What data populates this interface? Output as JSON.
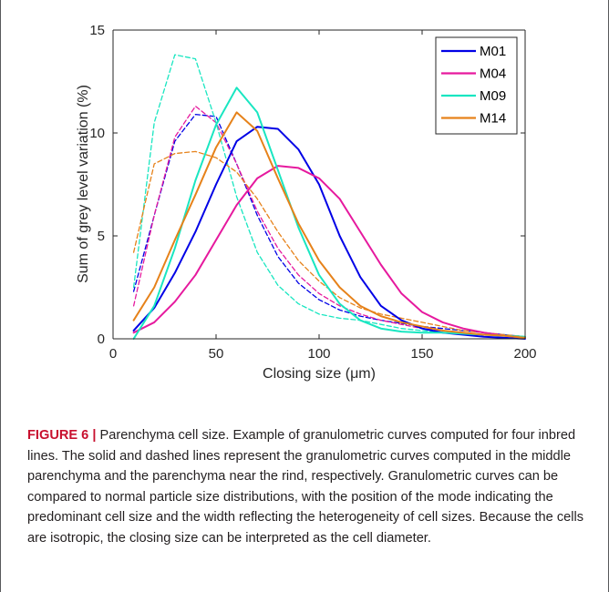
{
  "chart_data": {
    "type": "line",
    "xlabel": "Closing size (μm)",
    "ylabel": "Sum of grey level variation (%)",
    "xlim": [
      0,
      200
    ],
    "ylim": [
      0,
      15
    ],
    "xticks": [
      0,
      50,
      100,
      150,
      200
    ],
    "yticks": [
      0,
      5,
      10,
      15
    ],
    "grid": false,
    "legend_position": "top-right",
    "x": [
      10,
      20,
      30,
      40,
      50,
      60,
      70,
      80,
      90,
      100,
      110,
      120,
      130,
      140,
      150,
      160,
      170,
      180,
      190,
      200
    ],
    "series": [
      {
        "name": "M01",
        "style": "solid",
        "color": "#0000e6",
        "values": [
          0.4,
          1.5,
          3.2,
          5.2,
          7.5,
          9.6,
          10.3,
          10.2,
          9.2,
          7.5,
          5.0,
          3.0,
          1.6,
          0.9,
          0.5,
          0.3,
          0.2,
          0.1,
          0.05,
          0.0
        ]
      },
      {
        "name": "M04",
        "style": "solid",
        "color": "#e6199e",
        "values": [
          0.3,
          0.8,
          1.8,
          3.1,
          4.8,
          6.5,
          7.8,
          8.4,
          8.3,
          7.8,
          6.8,
          5.2,
          3.6,
          2.2,
          1.3,
          0.8,
          0.5,
          0.3,
          0.15,
          0.05
        ]
      },
      {
        "name": "M09",
        "style": "solid",
        "color": "#19e6c1",
        "values": [
          0.0,
          1.6,
          4.4,
          7.7,
          10.4,
          12.2,
          11.0,
          8.2,
          5.4,
          3.1,
          1.7,
          0.9,
          0.5,
          0.35,
          0.3,
          0.3,
          0.25,
          0.2,
          0.15,
          0.1
        ]
      },
      {
        "name": "M14",
        "style": "solid",
        "color": "#e6821a",
        "values": [
          0.9,
          2.5,
          4.8,
          7.0,
          9.3,
          11.0,
          10.1,
          7.8,
          5.6,
          3.8,
          2.5,
          1.6,
          1.1,
          0.8,
          0.6,
          0.4,
          0.3,
          0.2,
          0.15,
          0.05
        ]
      },
      {
        "name": "",
        "style": "dashed",
        "color": "#0000e6",
        "values": [
          2.3,
          6.0,
          9.6,
          10.9,
          10.8,
          8.5,
          6.0,
          4.0,
          2.7,
          1.9,
          1.4,
          1.1,
          0.9,
          0.75,
          0.6,
          0.5,
          0.4,
          0.3,
          0.2,
          0.1
        ]
      },
      {
        "name": "",
        "style": "dashed",
        "color": "#e6199e",
        "values": [
          1.6,
          6.0,
          9.8,
          11.3,
          10.5,
          8.5,
          6.2,
          4.4,
          3.1,
          2.2,
          1.6,
          1.2,
          0.9,
          0.7,
          0.5,
          0.4,
          0.3,
          0.2,
          0.15,
          0.1
        ]
      },
      {
        "name": "",
        "style": "dashed",
        "color": "#19e6c1",
        "values": [
          2.5,
          10.5,
          13.8,
          13.6,
          10.5,
          6.9,
          4.2,
          2.6,
          1.7,
          1.2,
          1.0,
          0.9,
          0.7,
          0.5,
          0.4,
          0.3,
          0.25,
          0.2,
          0.15,
          0.1
        ]
      },
      {
        "name": "",
        "style": "dashed",
        "color": "#e6821a",
        "values": [
          4.2,
          8.5,
          9.0,
          9.1,
          8.8,
          8.1,
          6.8,
          5.2,
          3.8,
          2.8,
          2.0,
          1.5,
          1.2,
          1.0,
          0.8,
          0.6,
          0.4,
          0.3,
          0.2,
          0.1
        ]
      }
    ]
  },
  "caption": {
    "figure_label": "FIGURE 6 |",
    "text": " Parenchyma cell size. Example of granulometric curves computed for four inbred lines. The solid and dashed lines represent the granulometric curves computed in the middle parenchyma and the parenchyma near the rind, respectively. Granulometric curves can be compared to normal particle size distributions, with the position of the mode indicating the predominant cell size and the width reflecting the heterogeneity of cell sizes. Because the cells are isotropic, the closing size can be interpreted as the cell diameter."
  }
}
